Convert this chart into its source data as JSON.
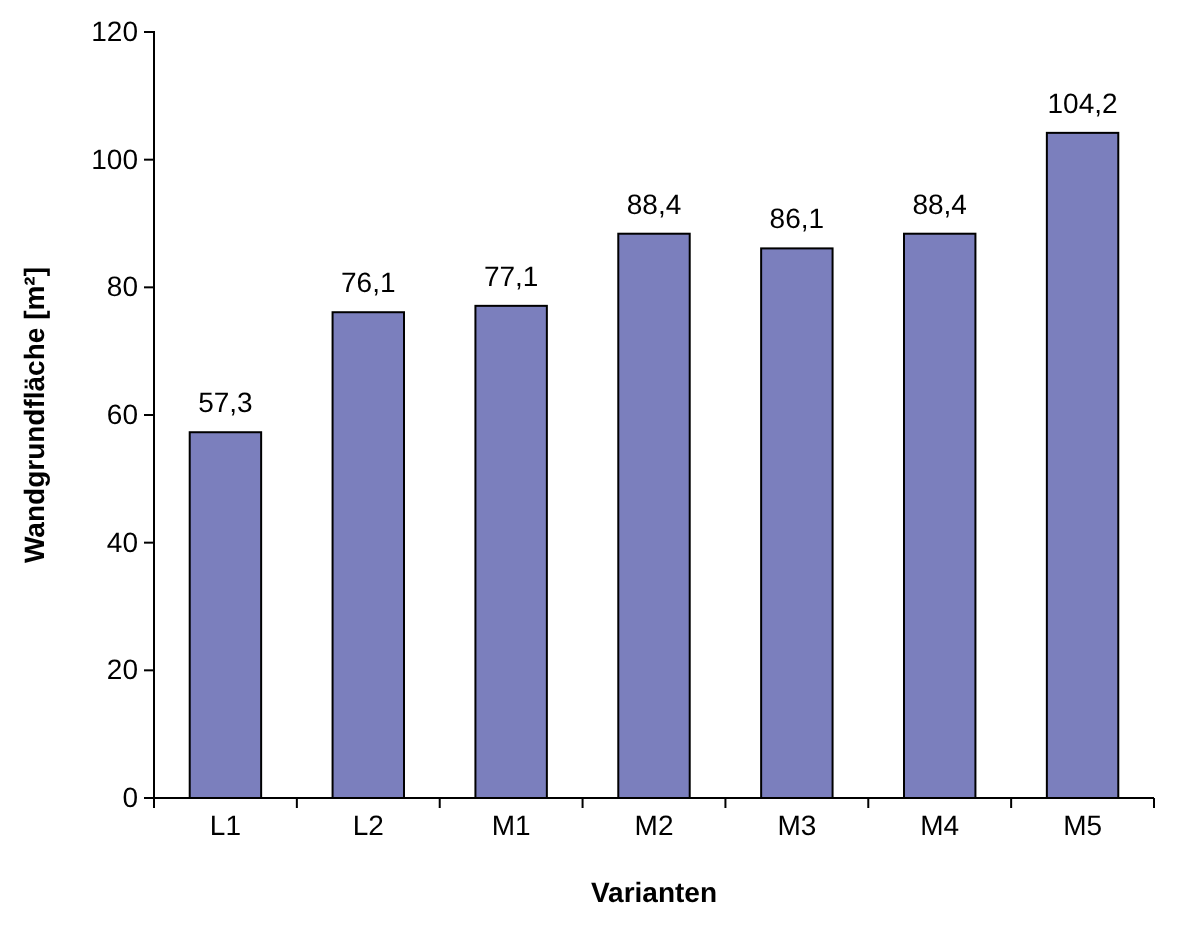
{
  "chart_data": {
    "type": "bar",
    "xlabel": "Varianten",
    "ylabel": "Wandgrundfläche [m²]",
    "categories": [
      "L1",
      "L2",
      "M1",
      "M2",
      "M3",
      "M4",
      "M5"
    ],
    "values": [
      57.3,
      76.1,
      77.1,
      88.4,
      86.1,
      88.4,
      104.2
    ],
    "value_labels": [
      "57,3",
      "76,1",
      "77,1",
      "88,4",
      "86,1",
      "88,4",
      "104,2"
    ],
    "color": "#7b7fbd",
    "ylim": [
      0,
      120
    ],
    "yticks": [
      0,
      20,
      40,
      60,
      80,
      100,
      120
    ],
    "grid": false
  }
}
